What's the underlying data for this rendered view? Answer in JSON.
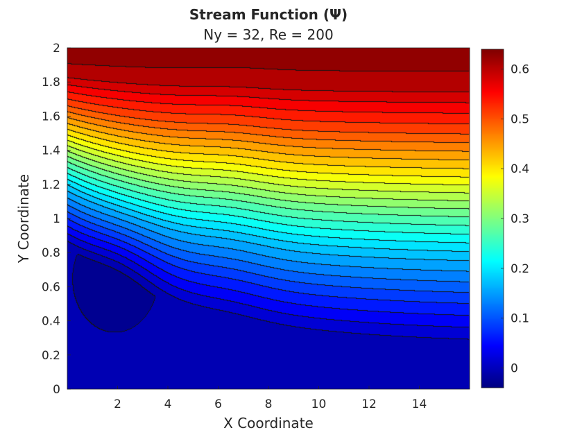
{
  "chart_data": {
    "type": "contour",
    "title": "Stream Function (Ψ)",
    "subtitle": "Ny = 32, Re = 200",
    "xlabel": "X Coordinate",
    "ylabel": "Y Coordinate",
    "xlim": [
      0,
      16
    ],
    "ylim": [
      0,
      2
    ],
    "xticks": [
      "2",
      "4",
      "6",
      "8",
      "10",
      "12",
      "14"
    ],
    "xtick_values": [
      2,
      4,
      6,
      8,
      10,
      12,
      14
    ],
    "yticks": [
      "0",
      "0.2",
      "0.4",
      "0.6",
      "0.8",
      "1",
      "1.2",
      "1.4",
      "1.6",
      "1.8",
      "2"
    ],
    "ytick_values": [
      0,
      0.2,
      0.4,
      0.6,
      0.8,
      1,
      1.2,
      1.4,
      1.6,
      1.8,
      2
    ],
    "colormap": "jet",
    "color_range": [
      -0.04,
      0.64
    ],
    "colorbar_ticks": [
      "0",
      "0.1",
      "0.2",
      "0.3",
      "0.4",
      "0.5",
      "0.6"
    ],
    "colorbar_tick_values": [
      0,
      0.1,
      0.2,
      0.3,
      0.4,
      0.5,
      0.6
    ],
    "contour_levels": 30,
    "outlet_profile": {
      "x": 16,
      "y": [
        0.25,
        0.5,
        0.75,
        1.0,
        1.25,
        1.5,
        1.75,
        2.0
      ],
      "psi": [
        0.0,
        0.08,
        0.17,
        0.28,
        0.4,
        0.51,
        0.6,
        0.64
      ]
    },
    "recirculation_zone": {
      "x_range": [
        0.3,
        4.1
      ],
      "y_range": [
        0.29,
        1.0
      ],
      "psi_min": -0.03
    },
    "grid": false,
    "colorbar_position": "right"
  }
}
